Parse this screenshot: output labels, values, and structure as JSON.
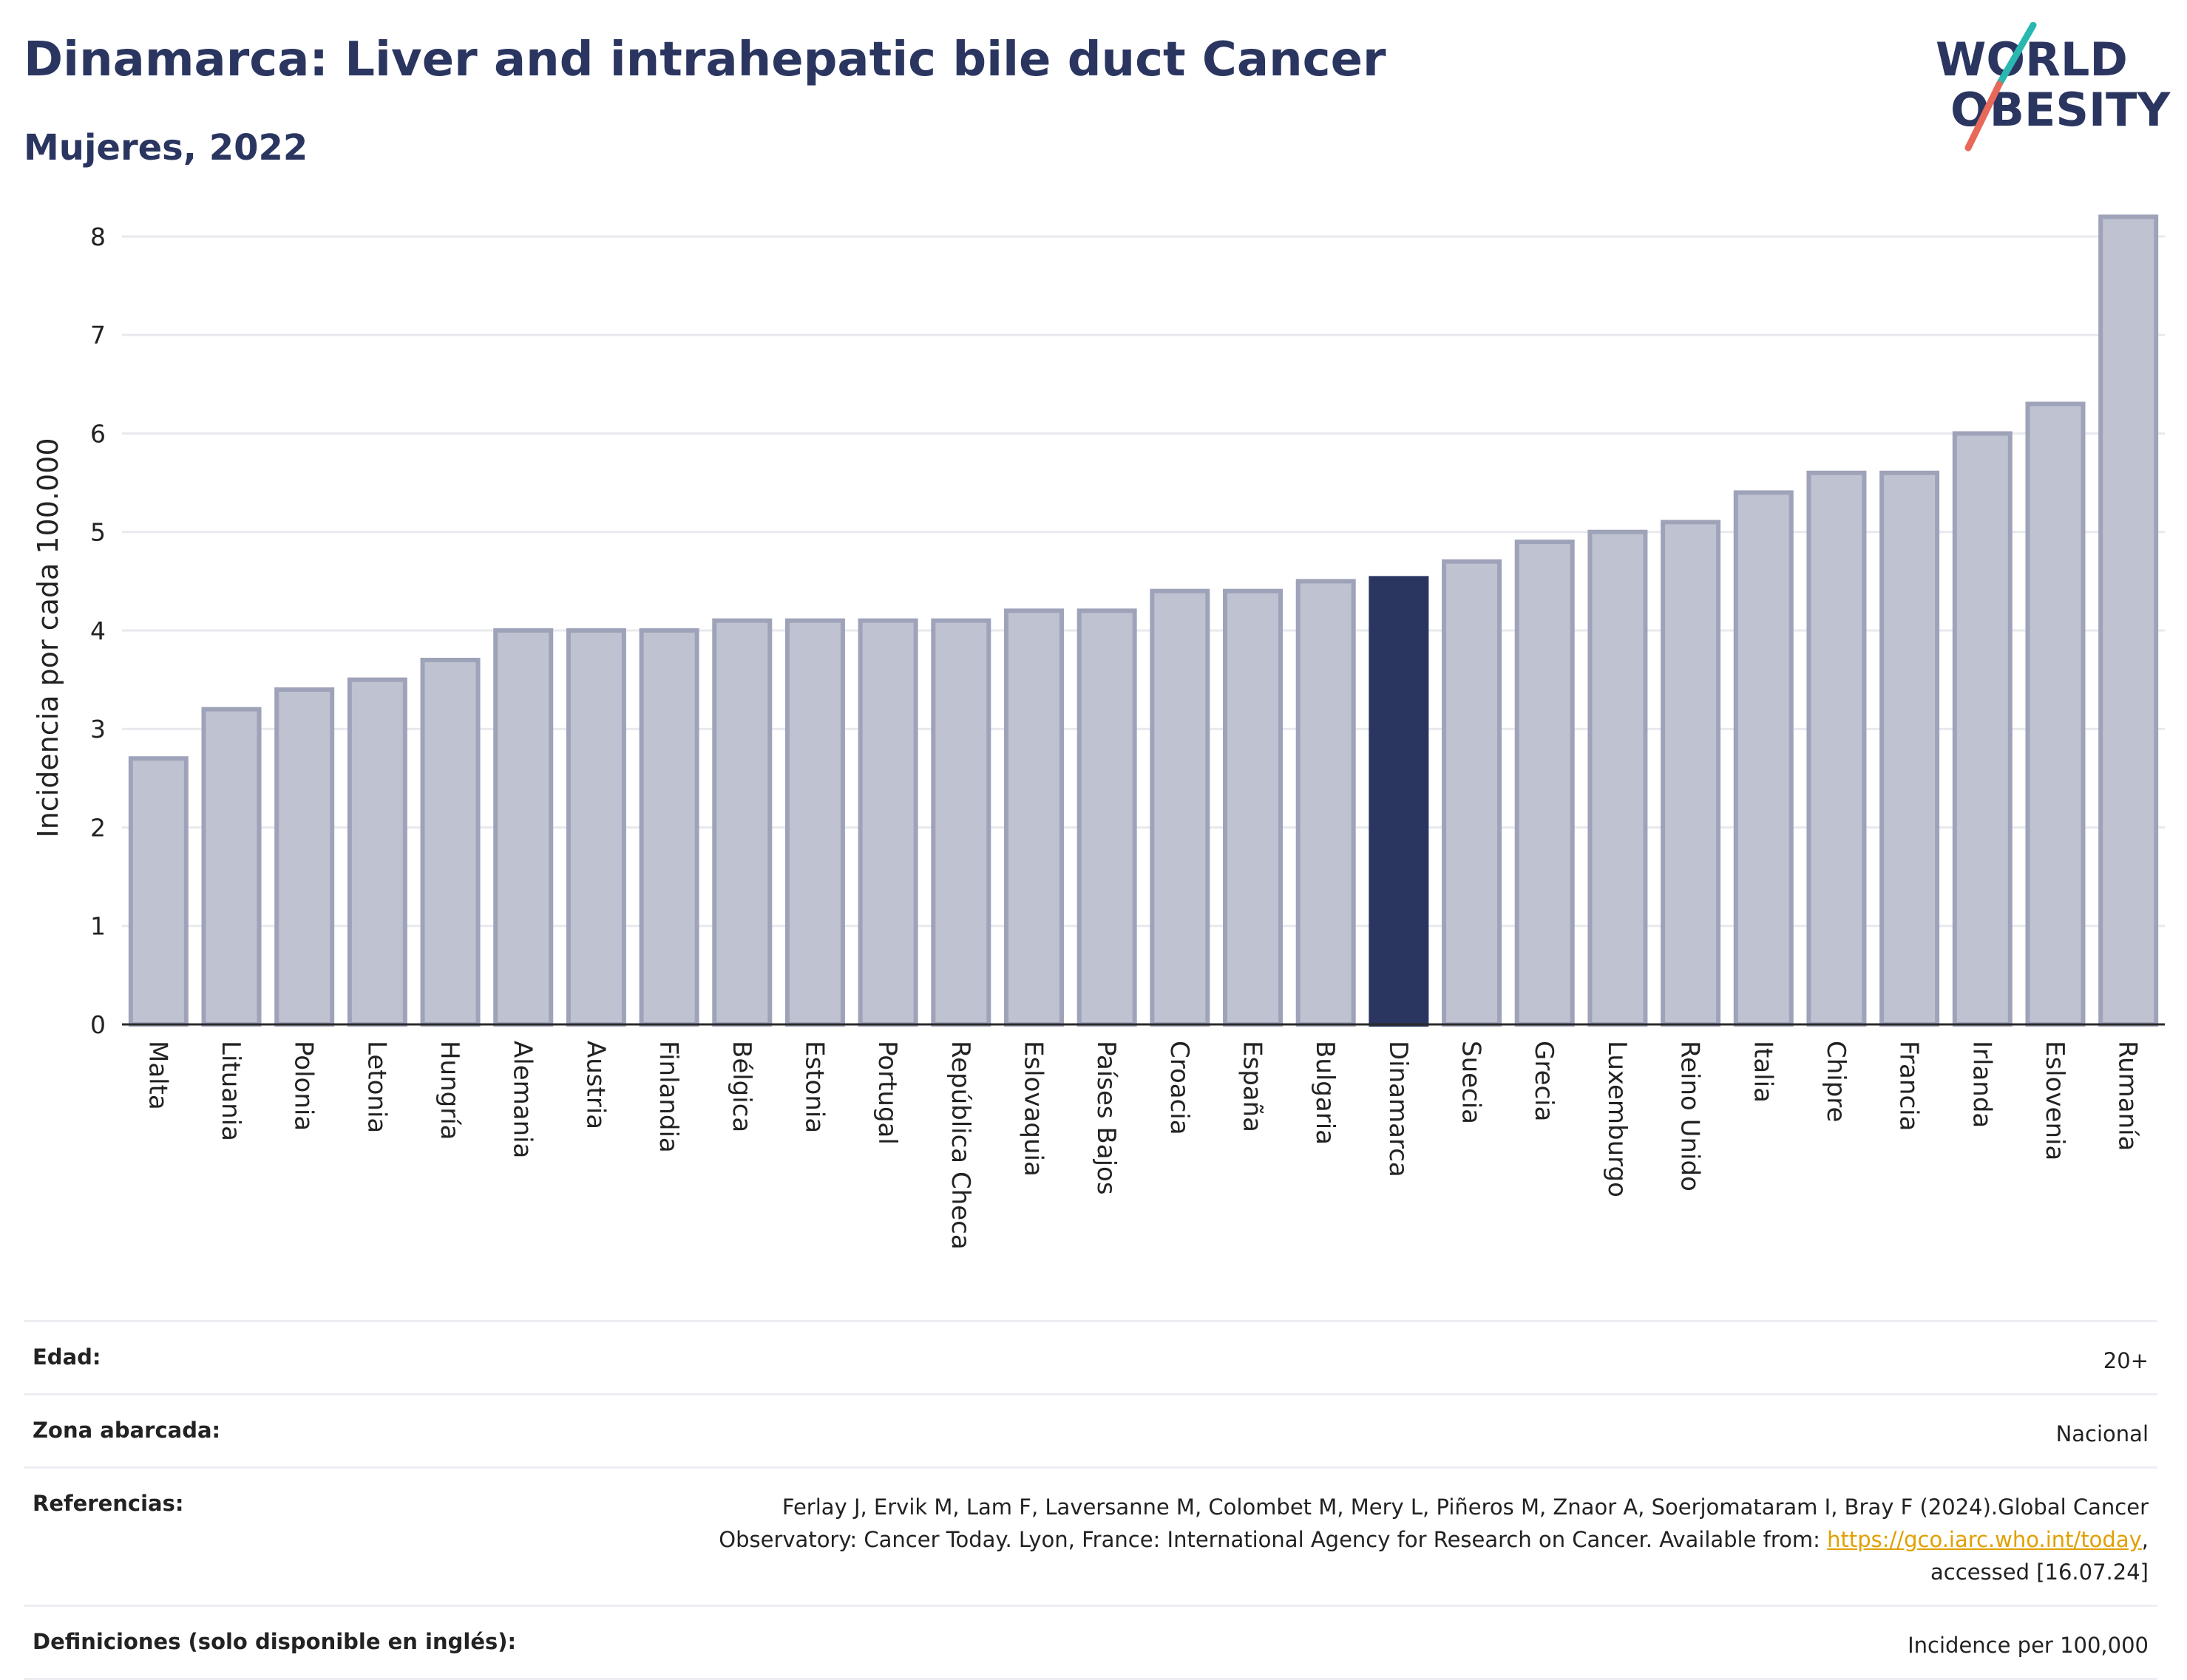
{
  "header": {
    "title": "Dinamarca: Liver and intrahepatic bile duct Cancer",
    "subtitle": "Mujeres, 2022"
  },
  "logo": {
    "line1": "WORLD",
    "line2": "OBESITY"
  },
  "colors": {
    "bar": "#bfc2d0",
    "bar_border": "#9ea3b9",
    "highlight": "#2a3560",
    "title": "#2a3560",
    "grid": "#e8e9ee"
  },
  "chart_data": {
    "type": "bar",
    "ylabel": "Incidencia por cada 100.000",
    "xlabel": "",
    "ylim": [
      0,
      8.3
    ],
    "yticks": [
      0,
      1,
      2,
      3,
      4,
      5,
      6,
      7,
      8
    ],
    "grid": true,
    "highlight": "Dinamarca",
    "categories": [
      "Malta",
      "Lituania",
      "Polonia",
      "Letonia",
      "Hungría",
      "Alemania",
      "Austria",
      "Finlandia",
      "Bélgica",
      "Estonia",
      "Portugal",
      "República Checa",
      "Eslovaquia",
      "Países Bajos",
      "Croacia",
      "España",
      "Bulgaria",
      "Dinamarca",
      "Suecia",
      "Grecia",
      "Luxemburgo",
      "Reino Unido",
      "Italia",
      "Chipre",
      "Francia",
      "Irlanda",
      "Eslovenia",
      "Rumanía"
    ],
    "values": [
      2.7,
      3.2,
      3.4,
      3.5,
      3.7,
      4.0,
      4.0,
      4.0,
      4.1,
      4.1,
      4.1,
      4.1,
      4.2,
      4.2,
      4.4,
      4.4,
      4.5,
      4.53,
      4.7,
      4.9,
      5.0,
      5.1,
      5.4,
      5.6,
      5.6,
      6.0,
      6.3,
      8.2
    ]
  },
  "meta": {
    "age_label": "Edad:",
    "age_value": "20+",
    "zone_label": "Zona abarcada:",
    "zone_value": "Nacional",
    "refs_label": "Referencias:",
    "refs_text_1": "Ferlay J, Ervik M, Lam F, Laversanne M, Colombet M, Mery L, Piñeros M, Znaor A, Soerjomataram I, Bray F (2024).Global Cancer",
    "refs_text_2": "Observatory: Cancer Today. Lyon, France: International Agency for Research on Cancer. Available from: ",
    "refs_link": "https://gco.iarc.who.int/today",
    "refs_text_3": ",",
    "refs_text_4": "accessed [16.07.24]",
    "defs_label": "Definiciones (solo disponible en inglés):",
    "defs_value": "Incidence per 100,000"
  }
}
